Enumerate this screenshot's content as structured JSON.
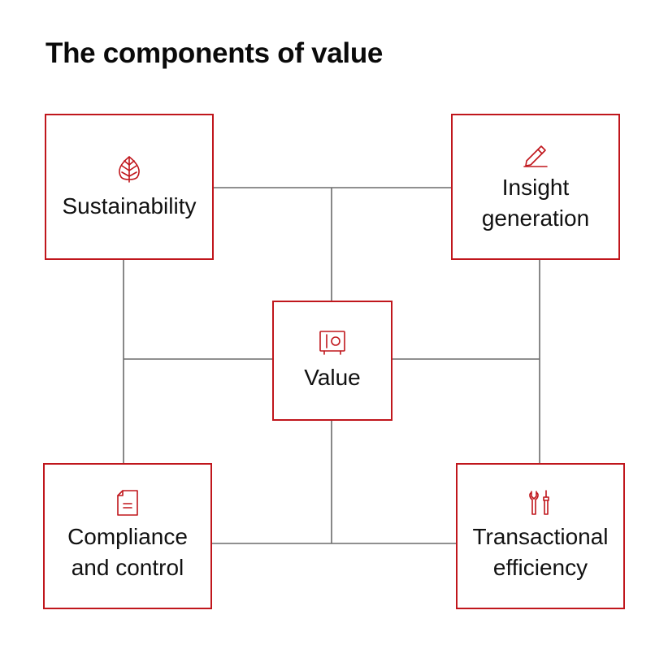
{
  "title": "The components of value",
  "colors": {
    "accent": "#c0161c",
    "connector": "#6b6b6b",
    "text": "#111111"
  },
  "nodes": {
    "sustainability": {
      "label": "Sustainability",
      "icon": "leaf-icon"
    },
    "insight": {
      "label": "Insight\ngeneration",
      "icon": "pencil-icon"
    },
    "value": {
      "label": "Value",
      "icon": "safe-icon"
    },
    "compliance": {
      "label": "Compliance\nand control",
      "icon": "document-icon"
    },
    "transactional": {
      "label": "Transactional\nefficiency",
      "icon": "tools-icon"
    }
  }
}
